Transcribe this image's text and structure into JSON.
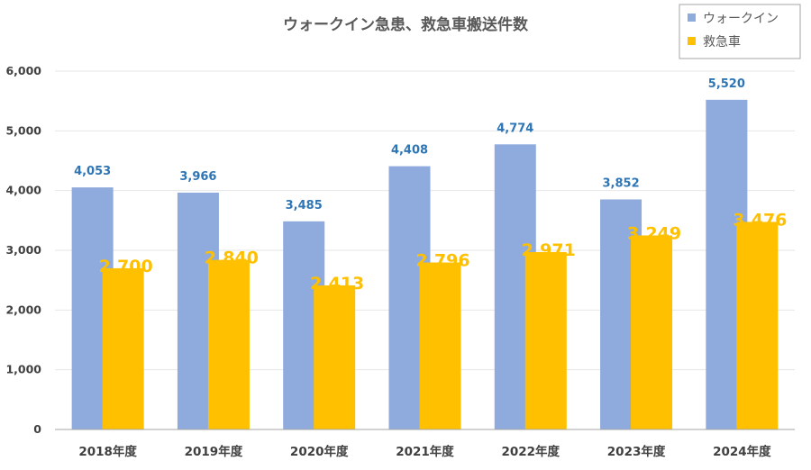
{
  "chart_data": {
    "type": "bar",
    "title": "ウォークイン急患、救急車搬送件数",
    "categories": [
      "2018年度",
      "2019年度",
      "2020年度",
      "2021年度",
      "2022年度",
      "2023年度",
      "2024年度"
    ],
    "series": [
      {
        "name": "ウォークイン",
        "color": "#8FAADC",
        "label_color": "#2E75B6",
        "values": [
          4053,
          3966,
          3485,
          4408,
          4774,
          3852,
          5520
        ],
        "labels": [
          "4,053",
          "3,966",
          "3,485",
          "4,408",
          "4,774",
          "3,852",
          "5,520"
        ]
      },
      {
        "name": "救急車",
        "color": "#FFC000",
        "label_color": "#FFC000",
        "values": [
          2700,
          2840,
          2413,
          2796,
          2971,
          3249,
          3476
        ],
        "labels": [
          "2,700",
          "2,840",
          "2,413",
          "2,796",
          "2,971",
          "3,249",
          "3,476"
        ]
      }
    ],
    "ylim": [
      0,
      6000
    ],
    "yticks": [
      0,
      1000,
      2000,
      3000,
      4000,
      5000,
      6000
    ],
    "ytick_labels": [
      "0",
      "1,000",
      "2,000",
      "3,000",
      "4,000",
      "5,000",
      "6,000"
    ],
    "xlabel": "",
    "ylabel": "",
    "grid": true,
    "legend": "top-right"
  }
}
